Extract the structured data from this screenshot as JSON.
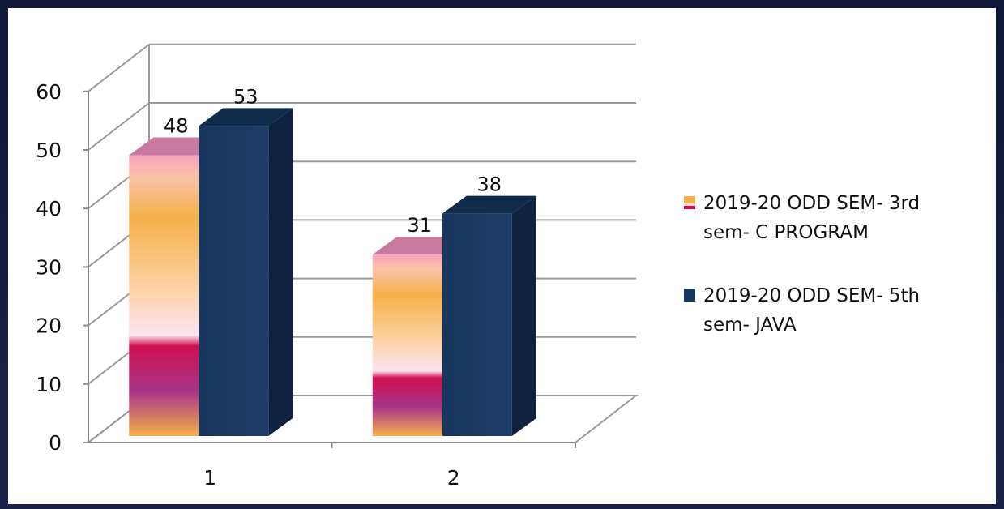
{
  "chart_data": {
    "type": "bar",
    "three_d": true,
    "categories": [
      "1",
      "2"
    ],
    "series": [
      {
        "name": "2019-20 ODD SEM- 3rd sem- C PROGRAM",
        "values": [
          48,
          31
        ],
        "color": "#f6b04a"
      },
      {
        "name": "2019-20 ODD SEM- 5th sem- JAVA",
        "values": [
          53,
          38
        ],
        "color": "#17365d"
      }
    ],
    "ylim": [
      0,
      60
    ],
    "yticks": [
      "0",
      "10",
      "20",
      "30",
      "40",
      "50",
      "60"
    ],
    "grid": true,
    "legend": "right",
    "data_labels": true
  }
}
